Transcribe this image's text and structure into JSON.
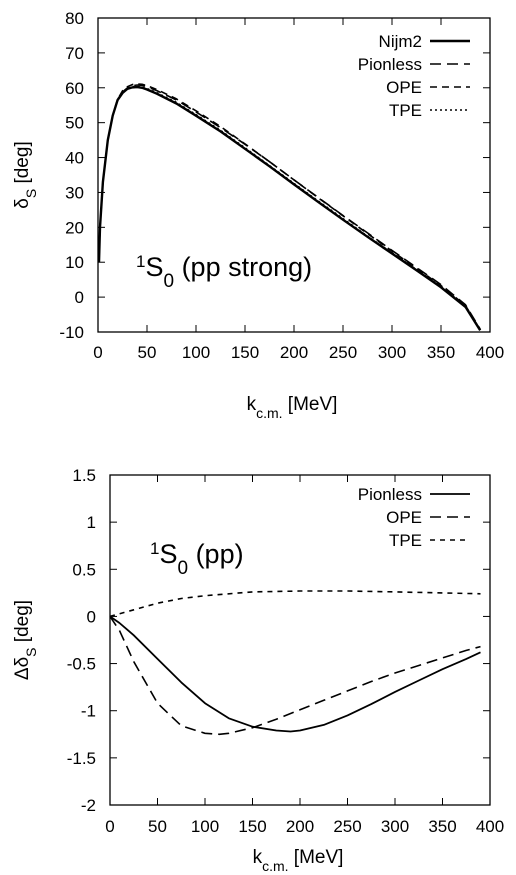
{
  "chart_data": [
    {
      "type": "line",
      "title": "",
      "panel_label": {
        "sup": "1",
        "main": "S",
        "sub": "0",
        "rest": " (pp strong)"
      },
      "xlabel": {
        "main": "k",
        "sub": "c.m.",
        "rest": " [MeV]"
      },
      "ylabel": {
        "main": "δ",
        "sub": "S",
        "rest": " [deg]"
      },
      "xlim": [
        0,
        400
      ],
      "ylim": [
        -10,
        80
      ],
      "xticks": [
        0,
        50,
        100,
        150,
        200,
        250,
        300,
        350,
        400
      ],
      "yticks": [
        -10,
        0,
        10,
        20,
        30,
        40,
        50,
        60,
        70,
        80
      ],
      "grid": false,
      "legend_position": "top-right",
      "series": [
        {
          "name": "Nijm2",
          "style": "solid-thick",
          "x": [
            1,
            2,
            5,
            10,
            15,
            20,
            25,
            30,
            35,
            40,
            45,
            50,
            60,
            80,
            100,
            125,
            150,
            175,
            200,
            225,
            250,
            275,
            300,
            325,
            350,
            375,
            390
          ],
          "y": [
            10,
            20,
            33,
            45,
            52,
            56.5,
            58.5,
            59.7,
            60.1,
            60.2,
            60,
            59.5,
            58.3,
            55.5,
            52,
            47.5,
            42.5,
            37.5,
            32.3,
            27.2,
            22.2,
            17.3,
            12.5,
            7.7,
            2.8,
            -2.8,
            -9.5
          ]
        },
        {
          "name": "Pionless",
          "style": "dashed-long",
          "x": [
            1,
            2,
            5,
            10,
            15,
            20,
            25,
            30,
            35,
            40,
            45,
            50,
            60,
            80,
            100,
            125,
            150,
            175,
            200,
            225,
            250,
            275,
            300,
            325,
            350,
            375,
            390
          ],
          "y": [
            10,
            20,
            33,
            45,
            52,
            56.5,
            58.8,
            60,
            60.6,
            60.8,
            60.7,
            60.3,
            59.2,
            56.5,
            53.1,
            48.6,
            43.8,
            38.8,
            33.6,
            28.5,
            23.4,
            18.4,
            13.4,
            8.5,
            3.6,
            -2.2,
            -9.2
          ]
        },
        {
          "name": "OPE",
          "style": "dashed-medium",
          "x": [
            1,
            2,
            5,
            10,
            15,
            20,
            25,
            30,
            35,
            40,
            45,
            50,
            60,
            80,
            100,
            125,
            150,
            175,
            200,
            225,
            250,
            275,
            300,
            325,
            350,
            375,
            390
          ],
          "y": [
            10,
            20,
            33,
            45,
            52,
            56.7,
            59.1,
            60.3,
            60.9,
            61.1,
            61,
            60.6,
            59.5,
            56.8,
            53.4,
            48.9,
            43.9,
            38.8,
            33.6,
            28.4,
            23.3,
            18.2,
            13.2,
            8.3,
            3.3,
            -2.4,
            -9.4
          ]
        },
        {
          "name": "TPE",
          "style": "dotted",
          "x": [
            1,
            2,
            5,
            10,
            15,
            20,
            25,
            30,
            35,
            40,
            45,
            50,
            60,
            80,
            100,
            125,
            150,
            175,
            200,
            225,
            250,
            275,
            300,
            325,
            350,
            375,
            390
          ],
          "y": [
            10,
            20,
            33,
            45,
            52,
            56.6,
            58.7,
            59.9,
            60.3,
            60.4,
            60.2,
            59.8,
            58.6,
            55.8,
            52.3,
            47.8,
            42.8,
            37.7,
            32.6,
            27.5,
            22.5,
            17.5,
            12.7,
            7.9,
            3,
            -2.6,
            -9.3
          ]
        }
      ]
    },
    {
      "type": "line",
      "title": "",
      "panel_label": {
        "sup": "1",
        "main": "S",
        "sub": "0",
        "rest": " (pp)"
      },
      "xlabel": {
        "main": "k",
        "sub": "c.m.",
        "rest": " [MeV]"
      },
      "ylabel": {
        "main": "Δδ",
        "sub": "S",
        "rest": " [deg]"
      },
      "xlim": [
        0,
        400
      ],
      "ylim": [
        -2,
        1.5
      ],
      "xticks": [
        0,
        50,
        100,
        150,
        200,
        250,
        300,
        350,
        400
      ],
      "yticks": [
        -2,
        -1.5,
        -1,
        -0.5,
        0,
        0.5,
        1,
        1.5
      ],
      "grid": false,
      "legend_position": "top-right",
      "series": [
        {
          "name": "Pionless",
          "style": "solid",
          "x": [
            0,
            10,
            25,
            50,
            75,
            100,
            125,
            150,
            175,
            190,
            200,
            225,
            250,
            275,
            300,
            325,
            350,
            375,
            390
          ],
          "y": [
            0,
            -0.07,
            -0.2,
            -0.45,
            -0.7,
            -0.92,
            -1.08,
            -1.17,
            -1.21,
            -1.22,
            -1.21,
            -1.15,
            -1.05,
            -0.93,
            -0.8,
            -0.68,
            -0.56,
            -0.45,
            -0.38
          ]
        },
        {
          "name": "OPE",
          "style": "dashed-long",
          "x": [
            0,
            10,
            25,
            50,
            75,
            100,
            115,
            125,
            150,
            175,
            200,
            225,
            250,
            275,
            300,
            325,
            350,
            375,
            390
          ],
          "y": [
            0,
            -0.15,
            -0.48,
            -0.92,
            -1.16,
            -1.24,
            -1.25,
            -1.24,
            -1.18,
            -1.09,
            -0.99,
            -0.89,
            -0.79,
            -0.69,
            -0.6,
            -0.52,
            -0.44,
            -0.36,
            -0.32
          ]
        },
        {
          "name": "TPE",
          "style": "dashed-short",
          "x": [
            0,
            25,
            50,
            75,
            100,
            150,
            200,
            250,
            300,
            350,
            390
          ],
          "y": [
            0,
            0.07,
            0.14,
            0.19,
            0.22,
            0.26,
            0.27,
            0.27,
            0.26,
            0.25,
            0.24
          ]
        }
      ]
    }
  ]
}
